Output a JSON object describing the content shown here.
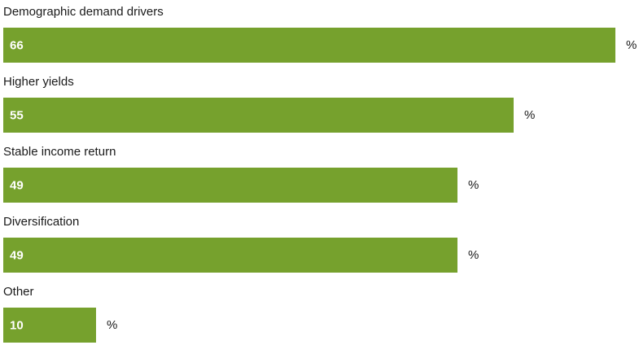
{
  "chart_data": {
    "type": "bar",
    "orientation": "horizontal",
    "categories": [
      "Demographic demand drivers",
      "Higher yields",
      "Stable income return",
      "Diversification",
      "Other"
    ],
    "values": [
      66,
      55,
      49,
      49,
      10
    ],
    "value_labels": [
      "66",
      "55",
      "49",
      "49",
      "10"
    ],
    "unit": "%",
    "title": "",
    "xlabel": "",
    "ylabel": "",
    "xlim": [
      0,
      66
    ],
    "grid": false,
    "legend": "none",
    "bar_color": "#76A12D",
    "value_label_color": "#ffffff"
  }
}
